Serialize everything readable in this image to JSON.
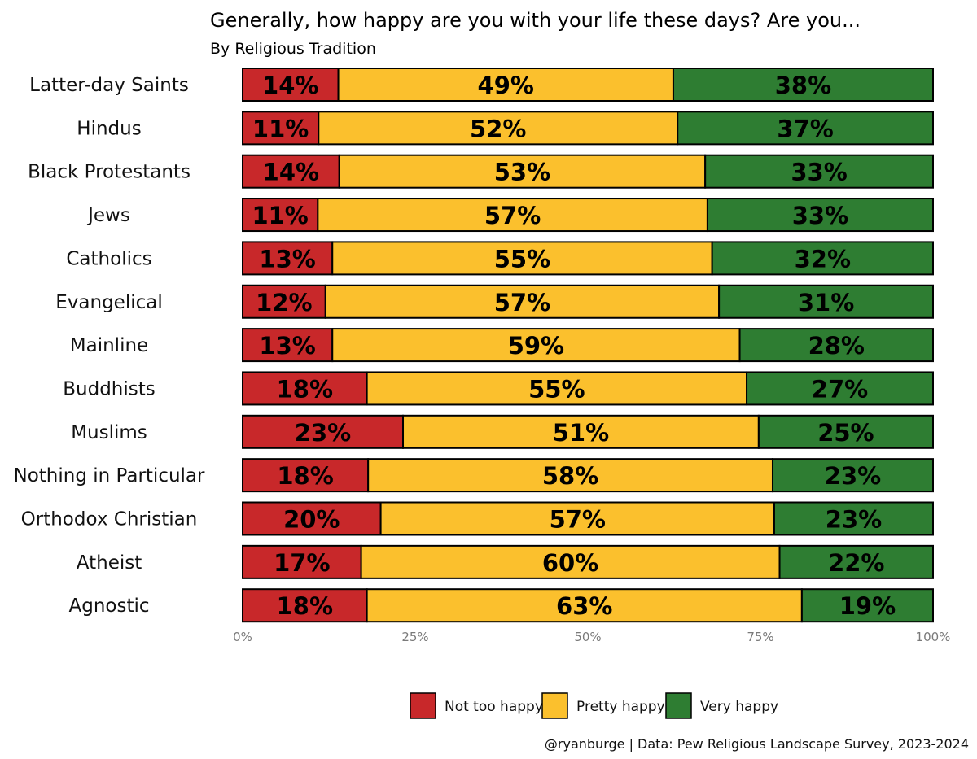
{
  "chart_data": {
    "type": "bar",
    "orientation": "horizontal",
    "stacked": true,
    "title": "Generally, how happy are you with your life these days? Are you...",
    "subtitle": "By Religious Tradition",
    "caption": "@ryanburge | Data: Pew Religious Landscape Survey, 2023-2024",
    "categories": [
      "Latter-day Saints",
      "Hindus",
      "Black Protestants",
      "Jews",
      "Catholics",
      "Evangelical",
      "Mainline",
      "Buddhists",
      "Muslims",
      "Nothing in Particular",
      "Orthodox Christian",
      "Atheist",
      "Agnostic"
    ],
    "series": [
      {
        "name": "Not too happy",
        "color": "#c8282a",
        "values": [
          14,
          11,
          14,
          11,
          13,
          12,
          13,
          18,
          23,
          18,
          20,
          17,
          18
        ]
      },
      {
        "name": "Pretty happy",
        "color": "#fbc02d",
        "values": [
          49,
          52,
          53,
          57,
          55,
          57,
          59,
          55,
          51,
          58,
          57,
          60,
          63
        ]
      },
      {
        "name": "Very happy",
        "color": "#2e7d32",
        "values": [
          38,
          37,
          33,
          33,
          32,
          31,
          28,
          27,
          25,
          23,
          23,
          22,
          19
        ]
      }
    ],
    "xlim": [
      0,
      100
    ],
    "x_ticks": [
      "0%",
      "25%",
      "50%",
      "75%",
      "100%"
    ],
    "grid": false,
    "legend_position": "bottom"
  }
}
